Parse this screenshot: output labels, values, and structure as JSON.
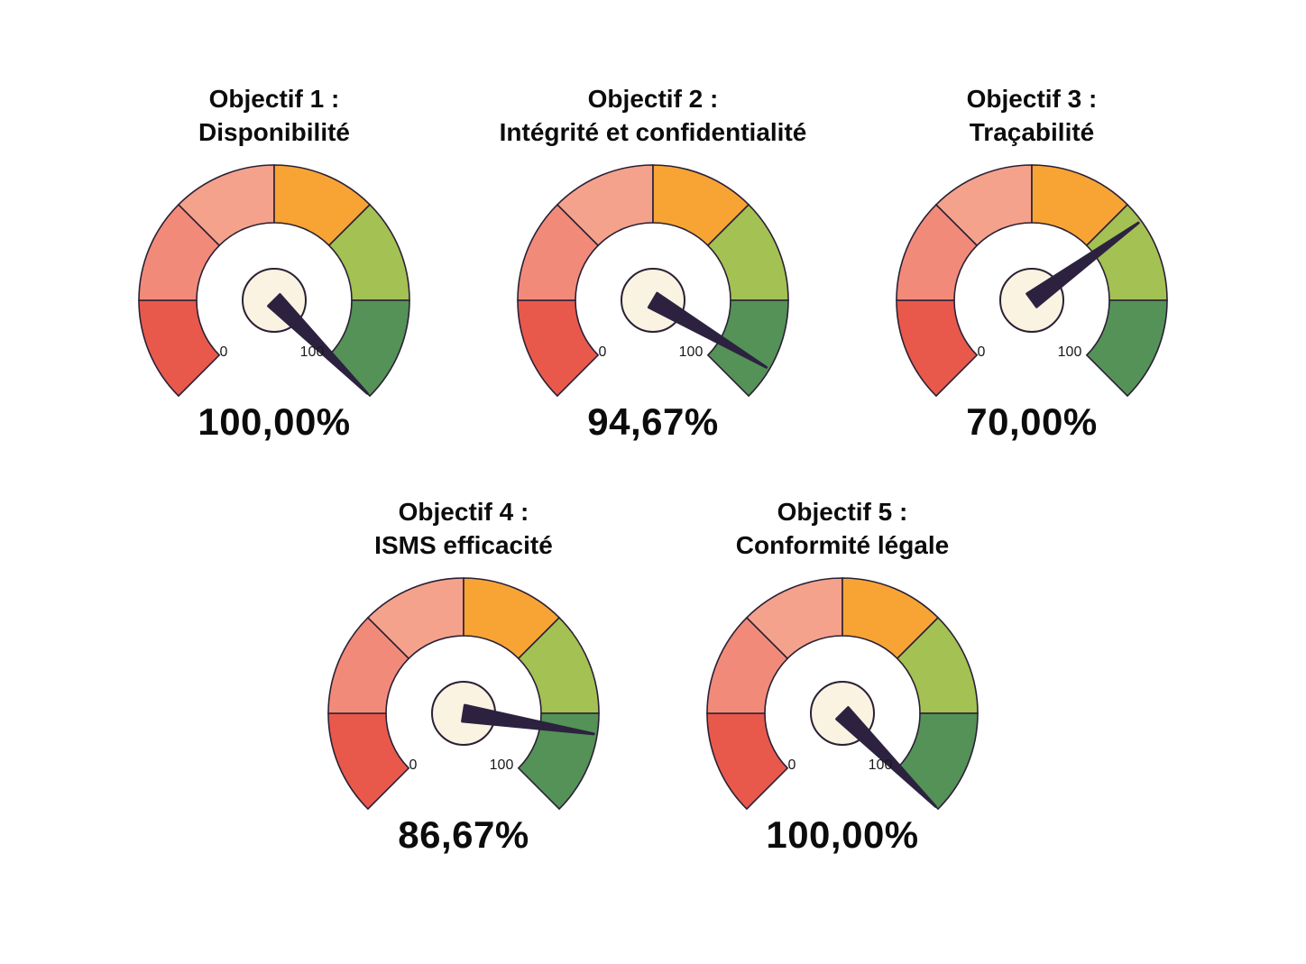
{
  "page": {
    "background": "#ffffff",
    "text_color": "#0c0c0c"
  },
  "gauge_style": {
    "segment_colors": [
      "#e8594c",
      "#f28a7a",
      "#f5a28c",
      "#f7a435",
      "#a4c153",
      "#549257"
    ],
    "outline_color": "#2a2035",
    "needle_color": "#2c2240",
    "hub_fill": "#faf3e1",
    "start_angle": 225,
    "end_angle": -45
  },
  "chart_data": [
    {
      "type": "gauge",
      "id": "objectif-1",
      "title_line1": "Objectif 1 :",
      "title_line2": "Disponibilité",
      "value": 100,
      "min": 0,
      "max": 100,
      "min_label": "0",
      "max_label": "100",
      "value_label": "100,00%"
    },
    {
      "type": "gauge",
      "id": "objectif-2",
      "title_line1": "Objectif 2 :",
      "title_line2": "Intégrité et confidentialité",
      "value": 94.67,
      "min": 0,
      "max": 100,
      "min_label": "0",
      "max_label": "100",
      "value_label": "94,67%"
    },
    {
      "type": "gauge",
      "id": "objectif-3",
      "title_line1": "Objectif 3 :",
      "title_line2": "Traçabilité",
      "value": 70,
      "min": 0,
      "max": 100,
      "min_label": "0",
      "max_label": "100",
      "value_label": "70,00%"
    },
    {
      "type": "gauge",
      "id": "objectif-4",
      "title_line1": "Objectif 4 :",
      "title_line2": "ISMS efficacité",
      "value": 86.67,
      "min": 0,
      "max": 100,
      "min_label": "0",
      "max_label": "100",
      "value_label": "86,67%"
    },
    {
      "type": "gauge",
      "id": "objectif-5",
      "title_line1": "Objectif 5 :",
      "title_line2": "Conformité légale",
      "value": 100,
      "min": 0,
      "max": 100,
      "min_label": "0",
      "max_label": "100",
      "value_label": "100,00%"
    }
  ]
}
